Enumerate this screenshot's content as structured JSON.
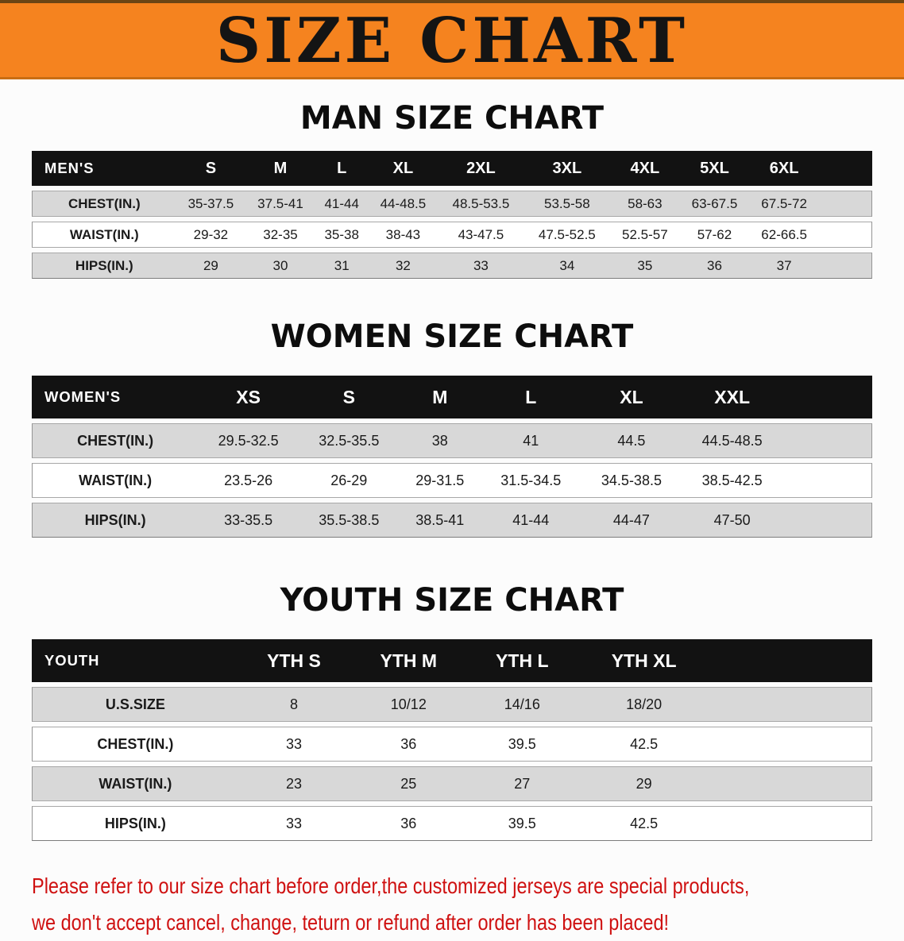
{
  "page": {
    "banner_title": "SIZE CHART"
  },
  "tables": [
    {
      "heading": "MAN SIZE CHART",
      "corner_label": "MEN'S",
      "columns": [
        "S",
        "M",
        "L",
        "XL",
        "2XL",
        "3XL",
        "4XL",
        "5XL",
        "6XL"
      ],
      "rows": [
        {
          "label": "CHEST(IN.)",
          "values": [
            "35-37.5",
            "37.5-41",
            "41-44",
            "44-48.5",
            "48.5-53.5",
            "53.5-58",
            "58-63",
            "63-67.5",
            "67.5-72"
          ]
        },
        {
          "label": "WAIST(IN.)",
          "values": [
            "29-32",
            "32-35",
            "35-38",
            "38-43",
            "43-47.5",
            "47.5-52.5",
            "52.5-57",
            "57-62",
            "62-66.5"
          ]
        },
        {
          "label": "HIPS(IN.)",
          "values": [
            "29",
            "30",
            "31",
            "32",
            "33",
            "34",
            "35",
            "36",
            "37"
          ]
        }
      ]
    },
    {
      "heading": "WOMEN SIZE CHART",
      "corner_label": "WOMEN'S",
      "columns": [
        "XS",
        "S",
        "M",
        "L",
        "XL",
        "XXL"
      ],
      "rows": [
        {
          "label": "CHEST(IN.)",
          "values": [
            "29.5-32.5",
            "32.5-35.5",
            "38",
            "41",
            "44.5",
            "44.5-48.5"
          ]
        },
        {
          "label": "WAIST(IN.)",
          "values": [
            "23.5-26",
            "26-29",
            "29-31.5",
            "31.5-34.5",
            "34.5-38.5",
            "38.5-42.5"
          ]
        },
        {
          "label": "HIPS(IN.)",
          "values": [
            "33-35.5",
            "35.5-38.5",
            "38.5-41",
            "41-44",
            "44-47",
            "47-50"
          ]
        }
      ]
    },
    {
      "heading": "YOUTH SIZE CHART",
      "corner_label": "YOUTH",
      "columns": [
        "YTH S",
        "YTH M",
        "YTH L",
        "YTH XL"
      ],
      "rows": [
        {
          "label": "U.S.SIZE",
          "values": [
            "8",
            "10/12",
            "14/16",
            "18/20"
          ]
        },
        {
          "label": "CHEST(IN.)",
          "values": [
            "33",
            "36",
            "39.5",
            "42.5"
          ]
        },
        {
          "label": "WAIST(IN.)",
          "values": [
            "23",
            "25",
            "27",
            "29"
          ]
        },
        {
          "label": "HIPS(IN.)",
          "values": [
            "33",
            "36",
            "39.5",
            "42.5"
          ]
        }
      ]
    }
  ],
  "footer": {
    "line1": "Please refer to our size chart before order,the customized jerseys are special products,",
    "line2": "we don't accept cancel, change, teturn or refund after order has been placed!"
  },
  "colors": {
    "banner_bg": "#f5831f",
    "banner_text": "#141414",
    "table_header_bg": "#121212",
    "table_header_text": "#ffffff",
    "row_shaded_bg": "#d8d8d8",
    "row_plain_bg": "#ffffff",
    "note_text": "#cf1111"
  }
}
